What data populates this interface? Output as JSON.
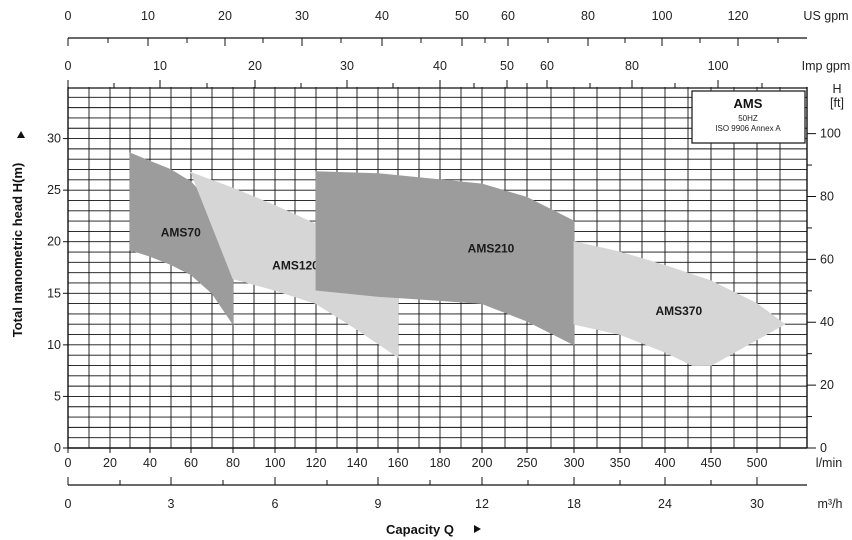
{
  "chart_data": {
    "type": "area",
    "title": "AMS",
    "legend_lines": [
      "50HZ",
      "ISO 9906 Annex A"
    ],
    "ylabel": "Total manometric head H(m)",
    "y2label": "H",
    "y2unit": "[ft]",
    "xlabel": "Capacity Q",
    "y_ticks": [
      "0",
      "5",
      "10",
      "15",
      "20",
      "25",
      "30"
    ],
    "y_range": [
      0,
      35
    ],
    "ft_ticks": [
      "0",
      "20",
      "40",
      "60",
      "80",
      "100"
    ],
    "scales": {
      "usgpm": {
        "unit": "US gpm",
        "labels": [
          "0",
          "10",
          "20",
          "30",
          "40",
          "50",
          "60",
          "80",
          "100",
          "120"
        ]
      },
      "impgpm": {
        "unit": "Imp gpm",
        "labels": [
          "0",
          "10",
          "20",
          "30",
          "40",
          "50",
          "60",
          "80",
          "100"
        ]
      },
      "lmin": {
        "unit": "l/min",
        "labels": [
          "0",
          "20",
          "40",
          "60",
          "80",
          "100",
          "120",
          "140",
          "160",
          "180",
          "200",
          "250",
          "300",
          "350",
          "400",
          "450",
          "500"
        ]
      },
      "m3h": {
        "unit": "m³/h",
        "labels": [
          "0",
          "3",
          "6",
          "9",
          "12",
          "18",
          "24",
          "30"
        ]
      }
    },
    "series": [
      {
        "name": "AMS70",
        "color": "#9c9c9c",
        "top": [
          [
            30,
            28.6
          ],
          [
            40,
            27.8
          ],
          [
            50,
            27.0
          ],
          [
            60,
            25.8
          ],
          [
            70,
            23.6
          ],
          [
            80,
            18.8
          ]
        ],
        "bottom": [
          [
            30,
            19.2
          ],
          [
            40,
            18.6
          ],
          [
            50,
            17.8
          ],
          [
            60,
            16.8
          ],
          [
            70,
            15.0
          ],
          [
            80,
            12.0
          ]
        ]
      },
      {
        "name": "AMS120",
        "color": "#d6d6d6",
        "top": [
          [
            60,
            26.7
          ],
          [
            80,
            25.2
          ],
          [
            100,
            23.5
          ],
          [
            120,
            21.7
          ],
          [
            140,
            19.5
          ],
          [
            160,
            16.5
          ]
        ],
        "bottom": [
          [
            80,
            16.4
          ],
          [
            100,
            15.3
          ],
          [
            120,
            14.0
          ],
          [
            140,
            11.5
          ],
          [
            160,
            8.8
          ]
        ]
      },
      {
        "name": "AMS210",
        "color": "#9c9c9c",
        "top": [
          [
            120,
            26.8
          ],
          [
            150,
            26.6
          ],
          [
            180,
            26.0
          ],
          [
            200,
            25.6
          ],
          [
            250,
            24.3
          ],
          [
            300,
            22.0
          ]
        ],
        "bottom": [
          [
            120,
            15.3
          ],
          [
            150,
            14.7
          ],
          [
            180,
            14.3
          ],
          [
            200,
            14.0
          ],
          [
            250,
            12.3
          ],
          [
            300,
            10.0
          ]
        ]
      },
      {
        "name": "AMS370",
        "color": "#d6d6d6",
        "top": [
          [
            300,
            20.0
          ],
          [
            350,
            19.0
          ],
          [
            400,
            17.7
          ],
          [
            450,
            16.2
          ],
          [
            500,
            14.0
          ],
          [
            530,
            12.0
          ]
        ],
        "bottom": [
          [
            300,
            12.0
          ],
          [
            350,
            11.0
          ],
          [
            400,
            9.3
          ],
          [
            430,
            8.0
          ],
          [
            450,
            8.0
          ],
          [
            500,
            10.5
          ],
          [
            530,
            12.0
          ]
        ]
      }
    ]
  }
}
